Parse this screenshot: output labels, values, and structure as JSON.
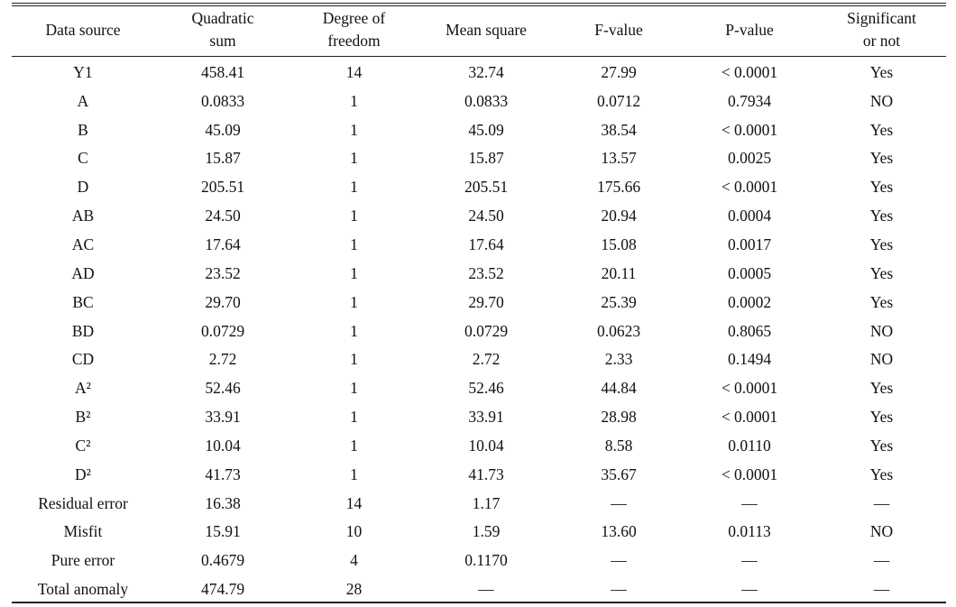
{
  "table": {
    "headers": [
      {
        "line1": "Data source",
        "line2": ""
      },
      {
        "line1": "Quadratic",
        "line2": "sum"
      },
      {
        "line1": "Degree of",
        "line2": "freedom"
      },
      {
        "line1": "Mean square",
        "line2": ""
      },
      {
        "line1": "F-value",
        "line2": ""
      },
      {
        "line1": "P-value",
        "line2": ""
      },
      {
        "line1": "Significant",
        "line2": "or not"
      }
    ],
    "rows": [
      [
        "Y1",
        "458.41",
        "14",
        "32.74",
        "27.99",
        "< 0.0001",
        "Yes"
      ],
      [
        "A",
        "0.0833",
        "1",
        "0.0833",
        "0.0712",
        "0.7934",
        "NO"
      ],
      [
        "B",
        "45.09",
        "1",
        "45.09",
        "38.54",
        "< 0.0001",
        "Yes"
      ],
      [
        "C",
        "15.87",
        "1",
        "15.87",
        "13.57",
        "0.0025",
        "Yes"
      ],
      [
        "D",
        "205.51",
        "1",
        "205.51",
        "175.66",
        "< 0.0001",
        "Yes"
      ],
      [
        "AB",
        "24.50",
        "1",
        "24.50",
        "20.94",
        "0.0004",
        "Yes"
      ],
      [
        "AC",
        "17.64",
        "1",
        "17.64",
        "15.08",
        "0.0017",
        "Yes"
      ],
      [
        "AD",
        "23.52",
        "1",
        "23.52",
        "20.11",
        "0.0005",
        "Yes"
      ],
      [
        "BC",
        "29.70",
        "1",
        "29.70",
        "25.39",
        "0.0002",
        "Yes"
      ],
      [
        "BD",
        "0.0729",
        "1",
        "0.0729",
        "0.0623",
        "0.8065",
        "NO"
      ],
      [
        "CD",
        "2.72",
        "1",
        "2.72",
        "2.33",
        "0.1494",
        "NO"
      ],
      [
        "A²",
        "52.46",
        "1",
        "52.46",
        "44.84",
        "< 0.0001",
        "Yes"
      ],
      [
        "B²",
        "33.91",
        "1",
        "33.91",
        "28.98",
        "< 0.0001",
        "Yes"
      ],
      [
        "C²",
        "10.04",
        "1",
        "10.04",
        "8.58",
        "0.0110",
        "Yes"
      ],
      [
        "D²",
        "41.73",
        "1",
        "41.73",
        "35.67",
        "< 0.0001",
        "Yes"
      ],
      [
        "Residual error",
        "16.38",
        "14",
        "1.17",
        "—",
        "—",
        "—"
      ],
      [
        "Misfit",
        "15.91",
        "10",
        "1.59",
        "13.60",
        "0.0113",
        "NO"
      ],
      [
        "Pure error",
        "0.4679",
        "4",
        "0.1170",
        "—",
        "—",
        "—"
      ],
      [
        "Total anomaly",
        "474.79",
        "28",
        "—",
        "—",
        "—",
        "—"
      ]
    ]
  }
}
